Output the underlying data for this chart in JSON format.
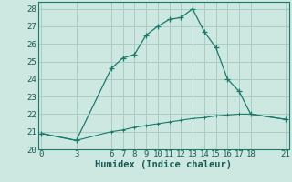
{
  "xlabel": "Humidex (Indice chaleur)",
  "background_color": "#cce8e0",
  "grid_color": "#aaccc4",
  "line_color": "#1a7a6a",
  "series1_x": [
    0,
    3,
    6,
    7,
    8,
    9,
    10,
    11,
    12,
    13,
    14,
    15,
    16,
    17,
    18,
    21
  ],
  "series1_y": [
    20.9,
    20.5,
    24.6,
    25.2,
    25.4,
    26.5,
    27.0,
    27.4,
    27.5,
    28.0,
    26.7,
    25.8,
    24.0,
    23.3,
    22.0,
    21.7
  ],
  "series2_x": [
    0,
    3,
    6,
    7,
    8,
    9,
    10,
    11,
    12,
    13,
    14,
    15,
    16,
    17,
    18,
    21
  ],
  "series2_y": [
    20.9,
    20.5,
    21.0,
    21.1,
    21.25,
    21.35,
    21.45,
    21.55,
    21.65,
    21.75,
    21.8,
    21.9,
    21.95,
    22.0,
    22.0,
    21.7
  ],
  "xlim": [
    -0.3,
    21.3
  ],
  "ylim": [
    20,
    28.4
  ],
  "xticks": [
    0,
    3,
    6,
    7,
    8,
    9,
    10,
    11,
    12,
    13,
    14,
    15,
    16,
    17,
    18,
    21
  ],
  "yticks": [
    20,
    21,
    22,
    23,
    24,
    25,
    26,
    27,
    28
  ],
  "tick_fontsize": 6.5,
  "xlabel_fontsize": 7.5
}
